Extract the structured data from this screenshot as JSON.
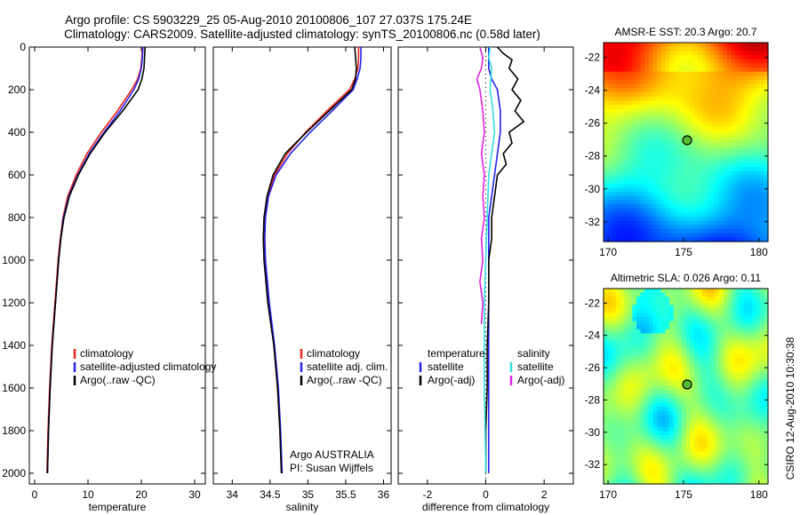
{
  "title_line1": "Argo profile: CS 5903229_25 05-Aug-2010 20100806_107 27.037S 175.24E",
  "title_line2": "Climatology: CARS2009. Satellite-adjusted climatology: synTS_20100806.nc (0.58d later)",
  "side_label": "CSIRO 12-Aug-2010 10:30:38",
  "colors": {
    "climatology": "#e8251b",
    "satellite": "#2222ee",
    "argo": "#000000",
    "satellite_sal": "#33dddd",
    "argo_sal": "#dd22dd",
    "float_marker": "#55bb33"
  },
  "chart_data": [
    {
      "type": "line",
      "xlabel": "temperature",
      "xlim": [
        -1,
        32
      ],
      "xticks": [
        "0",
        "10",
        "20",
        "30"
      ],
      "xtick_values": [
        0,
        10,
        20,
        30
      ],
      "ylim": [
        2050,
        0
      ],
      "yticks": [
        "0",
        "200",
        "400",
        "600",
        "800",
        "1000",
        "1200",
        "1400",
        "1600",
        "1800",
        "2000"
      ],
      "ytick_values": [
        0,
        200,
        400,
        600,
        800,
        1000,
        1200,
        1400,
        1600,
        1800,
        2000
      ],
      "legend": [
        "climatology",
        "satellite-adjusted climatology",
        "Argo(..raw -QC)"
      ],
      "series": [
        {
          "name": "climatology",
          "color": "#e8251b",
          "depth": [
            0,
            50,
            100,
            150,
            200,
            300,
            400,
            500,
            600,
            700,
            800,
            900,
            1000,
            1200,
            1400,
            1600,
            1800,
            2000
          ],
          "values": [
            20.2,
            20.1,
            19.9,
            19.3,
            18.2,
            15.5,
            12.5,
            9.8,
            7.8,
            6.2,
            5.3,
            4.8,
            4.4,
            3.8,
            3.2,
            2.8,
            2.5,
            2.3
          ]
        },
        {
          "name": "satellite-adjusted climatology",
          "color": "#2222ee",
          "depth": [
            0,
            50,
            100,
            150,
            200,
            300,
            400,
            500,
            600,
            700,
            800,
            900,
            1000,
            1200,
            1400,
            1600,
            1800,
            2000
          ],
          "values": [
            20.3,
            20.2,
            20.0,
            19.5,
            18.6,
            16.0,
            13.0,
            10.2,
            8.1,
            6.4,
            5.4,
            4.9,
            4.5,
            3.9,
            3.3,
            2.9,
            2.6,
            2.4
          ]
        },
        {
          "name": "Argo(..raw -QC)",
          "color": "#000000",
          "depth": [
            0,
            50,
            100,
            150,
            200,
            300,
            400,
            500,
            600,
            700,
            800,
            900,
            1000,
            1200,
            1400,
            1600,
            1800,
            2000
          ],
          "values": [
            20.7,
            20.6,
            20.5,
            20.1,
            19.4,
            16.5,
            13.2,
            10.4,
            8.2,
            6.5,
            5.5,
            4.9,
            4.5,
            3.9,
            3.3,
            2.9,
            2.6,
            2.4
          ]
        }
      ]
    },
    {
      "type": "line",
      "xlabel": "salinity",
      "xlim": [
        33.75,
        36.1
      ],
      "xticks": [
        "34",
        "34.5",
        "35",
        "35.5",
        "36"
      ],
      "xtick_values": [
        34,
        34.5,
        35,
        35.5,
        36
      ],
      "ylim": [
        2050,
        0
      ],
      "legend": [
        "climatology",
        "satellite adj. clim.",
        "Argo(..raw -QC)"
      ],
      "series": [
        {
          "name": "climatology",
          "color": "#e8251b",
          "depth": [
            0,
            50,
            100,
            150,
            200,
            300,
            400,
            500,
            600,
            700,
            800,
            900,
            1000,
            1200,
            1400,
            1600,
            1800,
            2000
          ],
          "values": [
            35.67,
            35.67,
            35.66,
            35.62,
            35.55,
            35.25,
            34.97,
            34.73,
            34.56,
            34.47,
            34.43,
            34.42,
            34.43,
            34.48,
            34.55,
            34.6,
            34.63,
            34.65
          ]
        },
        {
          "name": "satellite adj. clim.",
          "color": "#2222ee",
          "depth": [
            0,
            50,
            100,
            150,
            200,
            300,
            400,
            500,
            600,
            700,
            800,
            900,
            1000,
            1200,
            1400,
            1600,
            1800,
            2000
          ],
          "values": [
            35.7,
            35.7,
            35.69,
            35.65,
            35.6,
            35.32,
            35.03,
            34.77,
            34.58,
            34.48,
            34.44,
            34.43,
            34.44,
            34.49,
            34.56,
            34.61,
            34.64,
            34.66
          ]
        },
        {
          "name": "Argo(..raw -QC)",
          "color": "#000000",
          "depth": [
            0,
            50,
            100,
            150,
            200,
            300,
            400,
            500,
            600,
            700,
            800,
            900,
            1000,
            1200,
            1400,
            1600,
            1800,
            2000
          ],
          "values": [
            35.62,
            35.63,
            35.64,
            35.63,
            35.58,
            35.28,
            34.98,
            34.7,
            34.54,
            34.46,
            34.42,
            34.41,
            34.42,
            34.47,
            34.55,
            34.6,
            34.63,
            34.65
          ]
        }
      ],
      "annotation": [
        "Argo AUSTRALIA",
        "PI: Susan Wijffels"
      ]
    },
    {
      "type": "line",
      "xlabel": "difference from climatology",
      "xlim": [
        -3,
        3
      ],
      "xticks": [
        "-2",
        "0",
        "2"
      ],
      "xtick_values": [
        -2,
        0,
        2
      ],
      "ylim": [
        2050,
        0
      ],
      "legend_headers": [
        "temperature",
        "salinity"
      ],
      "legend_left": [
        "satellite",
        "Argo(-adj)"
      ],
      "legend_right": [
        "satellite",
        "Argo(-adj)"
      ],
      "series": [
        {
          "name": "temperature satellite",
          "color": "#2222ee",
          "depth": [
            0,
            50,
            100,
            150,
            200,
            300,
            400,
            500,
            600,
            800,
            1000,
            1200,
            1400,
            1600,
            1800,
            2000
          ],
          "values": [
            0.1,
            0.1,
            0.1,
            0.2,
            0.4,
            0.5,
            0.5,
            0.4,
            0.3,
            0.1,
            0.1,
            0.1,
            0.1,
            0.1,
            0.1,
            0.1
          ]
        },
        {
          "name": "temperature Argo(-adj)",
          "color": "#000000",
          "depth": [
            0,
            30,
            60,
            100,
            150,
            200,
            250,
            300,
            350,
            400,
            450,
            500,
            550,
            600,
            700,
            800,
            900,
            1000,
            1100,
            1200,
            1400,
            1600,
            1800,
            2000
          ],
          "values": [
            0.4,
            0.6,
            0.9,
            0.8,
            1.1,
            0.9,
            1.2,
            1.0,
            1.3,
            0.8,
            0.9,
            0.6,
            0.7,
            0.4,
            0.3,
            0.2,
            0.2,
            0.1,
            0.1,
            0.1,
            0.05,
            0.05,
            0.0,
            0.0
          ]
        },
        {
          "name": "salinity satellite",
          "color": "#33dddd",
          "depth": [
            0,
            50,
            100,
            200,
            300,
            400,
            500,
            600,
            800,
            1000,
            1200,
            1400,
            1600,
            1800,
            2000
          ],
          "values": [
            0.15,
            0.1,
            0.2,
            0.15,
            0.25,
            0.3,
            0.2,
            0.1,
            0.05,
            0.0,
            -0.05,
            -0.05,
            -0.05,
            -0.02,
            0.0
          ]
        },
        {
          "name": "salinity Argo(-adj)",
          "color": "#dd22dd",
          "depth": [
            0,
            50,
            100,
            150,
            200,
            300,
            400,
            500,
            600,
            700,
            800,
            900,
            1000,
            1100,
            1200,
            1300
          ],
          "values": [
            -0.2,
            -0.1,
            -0.15,
            -0.3,
            -0.2,
            -0.1,
            -0.05,
            -0.15,
            -0.05,
            -0.1,
            -0.05,
            -0.15,
            -0.1,
            -0.2,
            -0.1,
            -0.15
          ]
        }
      ]
    },
    {
      "type": "heatmap",
      "title": "AMSR-E SST: 20.3  Argo: 20.7",
      "xticks": [
        "170",
        "175",
        "180"
      ],
      "xtick_values": [
        170,
        175,
        180
      ],
      "yticks": [
        "-22",
        "-24",
        "-26",
        "-28",
        "-30",
        "-32"
      ],
      "ytick_values": [
        -22,
        -24,
        -26,
        -28,
        -30,
        -32
      ],
      "xlim": [
        169.7,
        180.6
      ],
      "ylim": [
        -33.2,
        -21.1
      ],
      "float_position": [
        175.24,
        -27.04
      ]
    },
    {
      "type": "heatmap",
      "title": "Altimetric SLA: 0.026  Argo: 0.11",
      "xticks": [
        "170",
        "175",
        "180"
      ],
      "xtick_values": [
        170,
        175,
        180
      ],
      "yticks": [
        "-22",
        "-24",
        "-26",
        "-28",
        "-30",
        "-32"
      ],
      "ytick_values": [
        -22,
        -24,
        -26,
        -28,
        -30,
        -32
      ],
      "xlim": [
        169.7,
        180.6
      ],
      "ylim": [
        -33.2,
        -21.1
      ],
      "float_position": [
        175.24,
        -27.04
      ]
    }
  ]
}
